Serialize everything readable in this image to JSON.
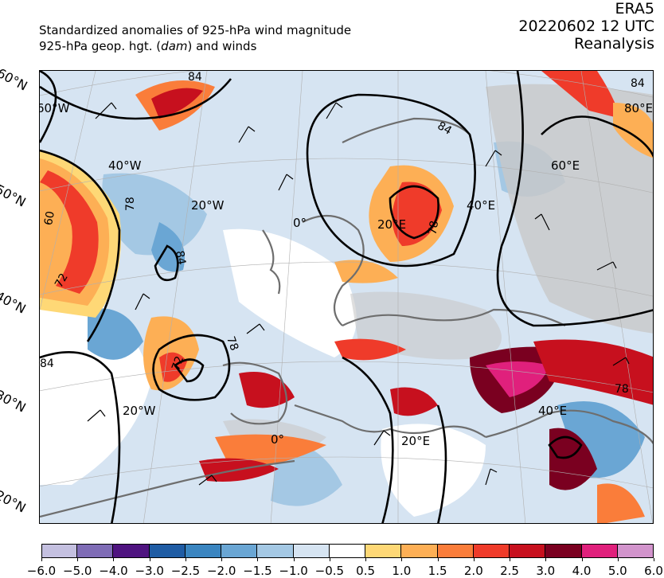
{
  "header": {
    "title_line1": "Standardized anomalies of 925-hPa wind magnitude",
    "title_line2_pre": "925-hPa geop. hgt. (",
    "title_line2_unit": "dam",
    "title_line2_post": ") and winds",
    "dataset": "ERA5",
    "datetime": "20220602 12 UTC",
    "product": "Reanalysis"
  },
  "map": {
    "lat_labels": [
      "60°N",
      "50°N",
      "40°N",
      "30°N",
      "20°N"
    ],
    "lon_labels": [
      "60°W",
      "40°W",
      "20°W",
      "0°",
      "20°E",
      "40°E",
      "60°E",
      "80°E",
      "20°W",
      "0°",
      "20°E",
      "40°E"
    ],
    "contour_labels": [
      "84",
      "60",
      "72",
      "84",
      "78",
      "84",
      "72",
      "78",
      "78",
      "84",
      "78",
      "84"
    ],
    "colors": {
      "ocean_neutral": "#d6e4f2",
      "land_neutral": "#c8c8c8",
      "contour": "#000000",
      "coastline": "#6e6e6e"
    }
  },
  "colorbar": {
    "ticks": [
      "−6.0",
      "−5.0",
      "−4.0",
      "−3.0",
      "−2.5",
      "−2.0",
      "−1.5",
      "−1.0",
      "−0.5",
      "0.5",
      "1.0",
      "1.5",
      "2.0",
      "2.5",
      "3.0",
      "4.0",
      "5.0",
      "6.0"
    ],
    "colors": [
      "#c4c0e0",
      "#7f6cb6",
      "#4f1480",
      "#1f5ca4",
      "#3a85c0",
      "#6aa6d4",
      "#a4c8e4",
      "#d6e4f2",
      "#ffffff",
      "#fed876",
      "#fdaf55",
      "#fa7d3a",
      "#ef3b2a",
      "#c7101e",
      "#7a0020",
      "#e0207c",
      "#d294cc"
    ]
  }
}
